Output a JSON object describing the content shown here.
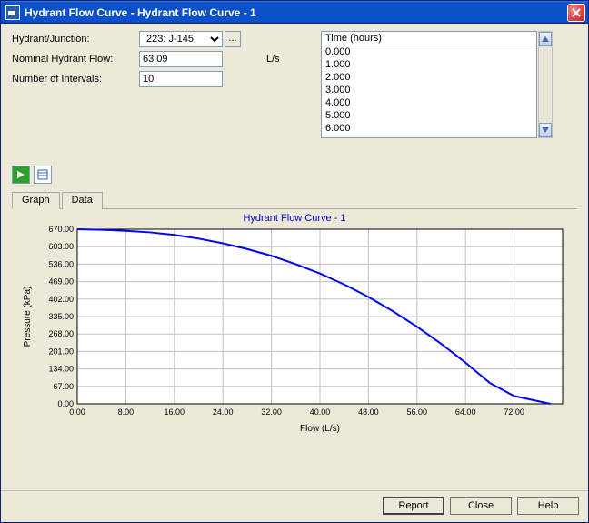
{
  "window": {
    "title": "Hydrant Flow Curve - Hydrant Flow Curve - 1"
  },
  "form": {
    "hydrant_label": "Hydrant/Junction:",
    "hydrant_value": "223: J-145",
    "nominal_label": "Nominal Hydrant Flow:",
    "nominal_value": "63.09",
    "nominal_unit": "L/s",
    "intervals_label": "Number of Intervals:",
    "intervals_value": "10"
  },
  "timelist": {
    "header": "Time (hours)",
    "items": [
      "0.000",
      "1.000",
      "2.000",
      "3.000",
      "4.000",
      "5.000",
      "6.000"
    ]
  },
  "tabs": {
    "graph": "Graph",
    "data": "Data"
  },
  "chart": {
    "title": "Hydrant Flow Curve - 1",
    "type": "line",
    "xlabel": "Flow (L/s)",
    "ylabel": "Pressure (kPa)",
    "xlim": [
      0,
      80
    ],
    "ylim": [
      0,
      670
    ],
    "xticks": [
      0,
      8,
      16,
      24,
      32,
      40,
      48,
      56,
      64,
      72
    ],
    "xticklabels": [
      "0.00",
      "8.00",
      "16.00",
      "24.00",
      "32.00",
      "40.00",
      "48.00",
      "56.00",
      "64.00",
      "72.00"
    ],
    "yticks": [
      0,
      67,
      134,
      201,
      268,
      335,
      402,
      469,
      536,
      603,
      670
    ],
    "yticklabels": [
      "0.00",
      "67.00",
      "134.00",
      "201.00",
      "268.00",
      "335.00",
      "402.00",
      "469.00",
      "536.00",
      "603.00",
      "670.00"
    ],
    "line_color": "#0000ff",
    "line_width": 2,
    "grid_color": "#c0c0c0",
    "background_color": "#ffffff",
    "axis_color": "#000000",
    "label_color": "#000000",
    "title_color": "#0000cc",
    "label_fontsize": 10,
    "tick_fontsize": 9,
    "series": [
      {
        "x": 0,
        "y": 670
      },
      {
        "x": 4,
        "y": 668
      },
      {
        "x": 8,
        "y": 664
      },
      {
        "x": 12,
        "y": 658
      },
      {
        "x": 16,
        "y": 648
      },
      {
        "x": 20,
        "y": 634
      },
      {
        "x": 24,
        "y": 616
      },
      {
        "x": 28,
        "y": 594
      },
      {
        "x": 32,
        "y": 568
      },
      {
        "x": 36,
        "y": 536
      },
      {
        "x": 40,
        "y": 500
      },
      {
        "x": 44,
        "y": 458
      },
      {
        "x": 48,
        "y": 410
      },
      {
        "x": 52,
        "y": 356
      },
      {
        "x": 56,
        "y": 296
      },
      {
        "x": 60,
        "y": 230
      },
      {
        "x": 64,
        "y": 158
      },
      {
        "x": 68,
        "y": 80
      },
      {
        "x": 72,
        "y": 30
      },
      {
        "x": 78,
        "y": 0
      }
    ]
  },
  "buttons": {
    "report": "Report",
    "close": "Close",
    "help": "Help"
  }
}
